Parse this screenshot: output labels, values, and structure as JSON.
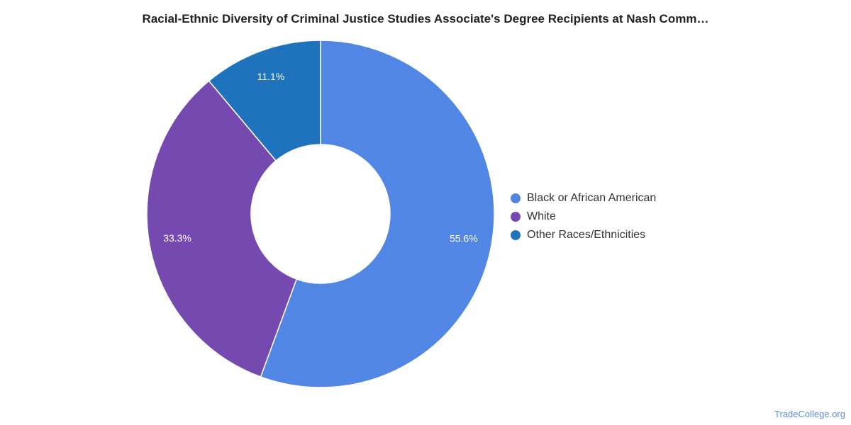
{
  "chart_data": {
    "type": "pie",
    "donut": true,
    "title": "Racial-Ethnic Diversity of Criminal Justice Studies Associate's Degree Recipients at Nash Comm…",
    "categories": [
      "Black or African American",
      "White",
      "Other Races/Ethnicities"
    ],
    "values": [
      55.6,
      33.3,
      11.1
    ],
    "labels": [
      "55.6%",
      "33.3%",
      "11.1%"
    ],
    "colors": [
      "#5286E4",
      "#7649B0",
      "#1F73BD"
    ],
    "legend": "right"
  },
  "credit": "TradeCollege.org"
}
